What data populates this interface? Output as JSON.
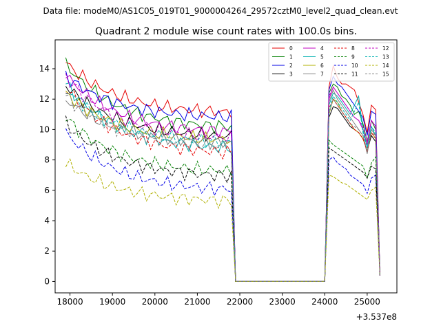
{
  "figure": {
    "suptitle": "Data file: modeM0/AS1C05_019T01_9000004264_29572cztM0_level2_quad_clean.evt"
  },
  "chart_data": {
    "type": "line",
    "title": "Quadrant 2 module wise count rates with 100.0s bins.",
    "xlabel": "",
    "ylabel": "",
    "x_offset_label": "+3.537e8",
    "xlim": [
      17650,
      25700
    ],
    "ylim": [
      -0.75,
      15.9
    ],
    "x_ticks": [
      18000,
      19000,
      20000,
      21000,
      22000,
      23000,
      24000,
      25000
    ],
    "x_tick_labels": [
      "18000",
      "19000",
      "20000",
      "21000",
      "22000",
      "23000",
      "24000",
      "25000"
    ],
    "y_ticks": [
      0,
      2,
      4,
      6,
      8,
      10,
      12,
      14
    ],
    "y_tick_labels": [
      "0",
      "2",
      "4",
      "6",
      "8",
      "10",
      "12",
      "14"
    ],
    "legend_position": "top-right",
    "legend_columns": 4,
    "segments": {
      "first": {
        "start": 17900,
        "end": 21800,
        "step": 100
      },
      "gap": {
        "start": 21900,
        "end": 24000,
        "value": 0
      },
      "second": {
        "start": 24100,
        "end": 25300,
        "step": 100
      }
    },
    "series": [
      {
        "name": "0",
        "color": "#e60000",
        "dash": "solid",
        "start": 14.4,
        "level": 11.0,
        "second": [
          12.8,
          14.2,
          13.4,
          13.0,
          13.0,
          12.8,
          12.6,
          11.8,
          11.0,
          9.8,
          11.6,
          11.3,
          0.4
        ]
      },
      {
        "name": "1",
        "color": "#008000",
        "dash": "solid",
        "start": 14.3,
        "level": 10.0,
        "second": [
          12.4,
          13.0,
          12.8,
          12.2,
          12.0,
          11.6,
          11.0,
          11.2,
          10.4,
          9.2,
          10.6,
          10.0,
          0.4
        ]
      },
      {
        "name": "2",
        "color": "#0000e6",
        "dash": "solid",
        "start": 13.5,
        "level": 10.7,
        "second": [
          12.6,
          13.5,
          13.0,
          12.8,
          12.4,
          12.0,
          11.6,
          11.2,
          10.8,
          9.6,
          11.2,
          11.0,
          0.4
        ]
      },
      {
        "name": "3",
        "color": "#000000",
        "dash": "solid",
        "start": 12.9,
        "level": 9.4,
        "second": [
          10.8,
          11.5,
          11.4,
          11.0,
          10.6,
          10.2,
          10.0,
          9.8,
          9.4,
          8.6,
          9.6,
          9.2,
          0.4
        ]
      },
      {
        "name": "4",
        "color": "#c000c0",
        "dash": "solid",
        "start": 13.6,
        "level": 9.7,
        "second": [
          12.0,
          12.8,
          12.4,
          12.0,
          11.6,
          11.2,
          10.8,
          10.6,
          10.0,
          9.0,
          10.6,
          10.2,
          0.4
        ]
      },
      {
        "name": "5",
        "color": "#00b0b0",
        "dash": "solid",
        "start": 13.0,
        "level": 8.6,
        "second": [
          11.6,
          12.4,
          12.2,
          11.8,
          11.4,
          11.0,
          11.6,
          12.2,
          10.0,
          8.8,
          10.2,
          9.6,
          0.4
        ]
      },
      {
        "name": "6",
        "color": "#b0b000",
        "dash": "solid",
        "start": 12.4,
        "level": 9.2,
        "second": [
          11.0,
          12.0,
          11.8,
          11.2,
          10.8,
          10.4,
          10.0,
          9.8,
          9.4,
          8.6,
          9.8,
          9.4,
          0.4
        ]
      },
      {
        "name": "7",
        "color": "#808080",
        "dash": "solid",
        "start": 12.0,
        "level": 9.0,
        "second": [
          11.8,
          12.6,
          12.0,
          11.6,
          11.2,
          10.8,
          10.4,
          10.0,
          9.6,
          8.4,
          10.0,
          9.6,
          0.4
        ]
      },
      {
        "name": "8",
        "color": "#e60000",
        "dash": "dashed",
        "start": 12.8,
        "level": 8.3,
        "second": [
          11.4,
          12.0,
          11.6,
          11.2,
          10.8,
          10.4,
          10.0,
          9.8,
          9.4,
          8.6,
          9.8,
          9.4,
          0.4
        ]
      },
      {
        "name": "9",
        "color": "#008000",
        "dash": "dashed",
        "start": 10.8,
        "level": 7.1,
        "second": [
          9.3,
          9.0,
          8.8,
          8.6,
          8.4,
          8.2,
          8.0,
          7.8,
          7.6,
          6.8,
          7.8,
          8.2,
          0.4
        ]
      },
      {
        "name": "10",
        "color": "#0000e6",
        "dash": "dashed",
        "start": 9.8,
        "level": 5.9,
        "second": [
          8.0,
          8.2,
          7.8,
          7.6,
          7.4,
          7.0,
          6.8,
          6.6,
          6.4,
          5.8,
          6.8,
          7.0,
          0.4
        ]
      },
      {
        "name": "11",
        "color": "#000000",
        "dash": "dashed",
        "start": 10.4,
        "level": 6.8,
        "second": [
          8.8,
          8.6,
          8.4,
          8.2,
          8.0,
          7.8,
          7.6,
          7.4,
          7.2,
          6.8,
          7.6,
          7.4,
          0.4
        ]
      },
      {
        "name": "12",
        "color": "#c000c0",
        "dash": "dashed",
        "start": 13.5,
        "level": 9.3,
        "second": [
          12.2,
          12.8,
          12.4,
          12.0,
          11.6,
          11.2,
          10.8,
          10.6,
          10.2,
          9.2,
          10.6,
          10.2,
          0.4
        ]
      },
      {
        "name": "13",
        "color": "#00b0b0",
        "dash": "dashed",
        "start": 12.6,
        "level": 9.0,
        "second": [
          11.2,
          12.2,
          11.8,
          11.4,
          11.0,
          10.6,
          11.2,
          11.8,
          9.8,
          8.8,
          10.2,
          9.8,
          0.4
        ]
      },
      {
        "name": "14",
        "color": "#b0b000",
        "dash": "dashed",
        "start": 7.8,
        "level": 5.2,
        "second": [
          7.0,
          6.9,
          6.7,
          6.5,
          6.4,
          6.2,
          6.0,
          5.8,
          5.6,
          5.4,
          6.0,
          6.2,
          0.4
        ]
      },
      {
        "name": "15",
        "color": "#808080",
        "dash": "dashed",
        "start": 12.2,
        "level": 8.8,
        "second": [
          11.0,
          12.0,
          11.6,
          11.2,
          10.8,
          10.4,
          10.2,
          10.0,
          9.6,
          8.6,
          9.8,
          9.6,
          0.4
        ]
      }
    ]
  }
}
